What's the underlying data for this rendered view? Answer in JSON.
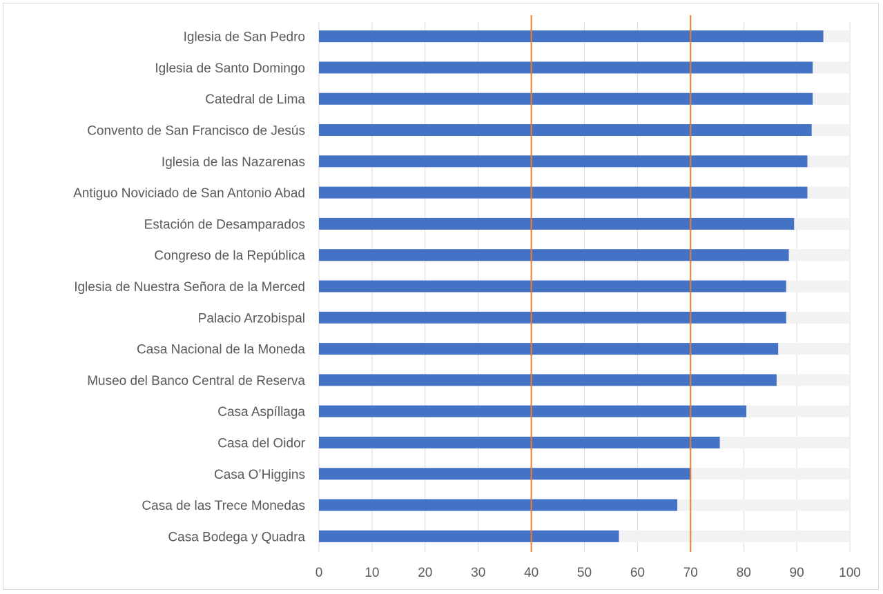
{
  "chart_data": {
    "type": "bar",
    "orientation": "horizontal",
    "categories": [
      "Iglesia de San Pedro",
      "Iglesia de Santo Domingo",
      "Catedral de Lima",
      "Convento de San Francisco de Jesús",
      "Iglesia de las Nazarenas",
      "Antiguo Noviciado de San Antonio Abad",
      "Estación de Desamparados",
      "Congreso de la República",
      "Iglesia de Nuestra Señora de la Merced",
      "Palacio Arzobispal",
      "Casa Nacional de la Moneda",
      "Museo del Banco Central de Reserva",
      "Casa Aspíllaga",
      "Casa del Oidor",
      "Casa O’Higgins",
      "Casa de las Trece Monedas",
      "Casa Bodega y Quadra"
    ],
    "values": [
      95,
      93,
      93,
      92.8,
      92,
      92,
      89.5,
      88.5,
      88,
      88,
      86.5,
      86.2,
      80.5,
      75.5,
      70,
      67.5,
      56.5
    ],
    "background_value": 100,
    "reference_lines": [
      40,
      70
    ],
    "xlim": [
      0,
      100
    ],
    "x_ticks": [
      0,
      10,
      20,
      30,
      40,
      50,
      60,
      70,
      80,
      90,
      100
    ],
    "title": "",
    "xlabel": "",
    "ylabel": "",
    "grid": true,
    "legend": "none",
    "colors": {
      "bar": "#4472c4",
      "track": "#f2f2f2",
      "reference_line": "#ed7d31",
      "grid": "#d9d9d9",
      "text": "#595959"
    }
  }
}
